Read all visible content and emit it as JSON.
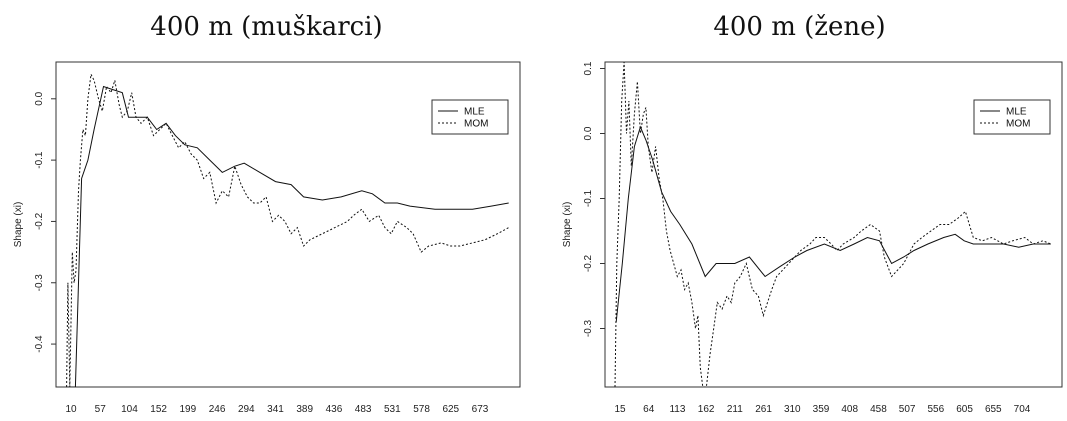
{
  "chart_data": [
    {
      "type": "line",
      "title": "400 m (muškarci)",
      "xlabel": "",
      "ylabel": "Shape (xi)",
      "x_tick_labels": [
        "10",
        "57",
        "104",
        "152",
        "199",
        "246",
        "294",
        "341",
        "389",
        "436",
        "483",
        "531",
        "578",
        "625",
        "673"
      ],
      "y_ticks": [
        0.0,
        -0.1,
        -0.2,
        -0.3,
        -0.4
      ],
      "y_tick_labels": [
        "0.0",
        "-0.1",
        "-0.2",
        "-0.3",
        "-0.4"
      ],
      "xlim": [
        10,
        720
      ],
      "ylim": [
        -0.47,
        0.06
      ],
      "legend": {
        "position": "top-right",
        "entries": [
          "MLE",
          "MOM"
        ]
      },
      "series": [
        {
          "name": "MLE",
          "style": "solid",
          "points": [
            [
              12,
              -0.47
            ],
            [
              25,
              -0.47
            ],
            [
              35,
              -0.13
            ],
            [
              45,
              -0.1
            ],
            [
              55,
              -0.05
            ],
            [
              70,
              0.02
            ],
            [
              85,
              0.015
            ],
            [
              100,
              0.01
            ],
            [
              110,
              -0.03
            ],
            [
              125,
              -0.03
            ],
            [
              140,
              -0.03
            ],
            [
              155,
              -0.05
            ],
            [
              170,
              -0.04
            ],
            [
              185,
              -0.06
            ],
            [
              200,
              -0.075
            ],
            [
              220,
              -0.08
            ],
            [
              240,
              -0.1
            ],
            [
              260,
              -0.12
            ],
            [
              280,
              -0.11
            ],
            [
              295,
              -0.105
            ],
            [
              320,
              -0.12
            ],
            [
              345,
              -0.135
            ],
            [
              370,
              -0.14
            ],
            [
              390,
              -0.16
            ],
            [
              420,
              -0.165
            ],
            [
              450,
              -0.16
            ],
            [
              483,
              -0.15
            ],
            [
              500,
              -0.155
            ],
            [
              520,
              -0.17
            ],
            [
              540,
              -0.17
            ],
            [
              560,
              -0.175
            ],
            [
              600,
              -0.18
            ],
            [
              640,
              -0.18
            ],
            [
              660,
              -0.18
            ],
            [
              690,
              -0.175
            ],
            [
              718,
              -0.17
            ]
          ]
        },
        {
          "name": "MOM",
          "style": "dashed",
          "points": [
            [
              11,
              -0.47
            ],
            [
              13,
              -0.3
            ],
            [
              16,
              -0.47
            ],
            [
              20,
              -0.25
            ],
            [
              23,
              -0.3
            ],
            [
              26,
              -0.28
            ],
            [
              30,
              -0.15
            ],
            [
              33,
              -0.1
            ],
            [
              37,
              -0.05
            ],
            [
              41,
              -0.06
            ],
            [
              45,
              0.0
            ],
            [
              50,
              0.04
            ],
            [
              55,
              0.03
            ],
            [
              62,
              0.0
            ],
            [
              68,
              -0.02
            ],
            [
              75,
              0.02
            ],
            [
              82,
              0.01
            ],
            [
              88,
              0.03
            ],
            [
              95,
              -0.01
            ],
            [
              100,
              -0.03
            ],
            [
              108,
              -0.02
            ],
            [
              115,
              0.01
            ],
            [
              122,
              -0.03
            ],
            [
              130,
              -0.04
            ],
            [
              140,
              -0.03
            ],
            [
              150,
              -0.06
            ],
            [
              160,
              -0.05
            ],
            [
              170,
              -0.04
            ],
            [
              180,
              -0.06
            ],
            [
              190,
              -0.08
            ],
            [
              200,
              -0.07
            ],
            [
              210,
              -0.09
            ],
            [
              220,
              -0.1
            ],
            [
              230,
              -0.13
            ],
            [
              240,
              -0.12
            ],
            [
              250,
              -0.17
            ],
            [
              260,
              -0.15
            ],
            [
              270,
              -0.16
            ],
            [
              280,
              -0.11
            ],
            [
              290,
              -0.14
            ],
            [
              300,
              -0.16
            ],
            [
              310,
              -0.17
            ],
            [
              320,
              -0.17
            ],
            [
              330,
              -0.16
            ],
            [
              340,
              -0.2
            ],
            [
              350,
              -0.19
            ],
            [
              360,
              -0.2
            ],
            [
              370,
              -0.22
            ],
            [
              380,
              -0.21
            ],
            [
              390,
              -0.24
            ],
            [
              400,
              -0.23
            ],
            [
              420,
              -0.22
            ],
            [
              440,
              -0.21
            ],
            [
              460,
              -0.2
            ],
            [
              470,
              -0.19
            ],
            [
              483,
              -0.18
            ],
            [
              495,
              -0.2
            ],
            [
              510,
              -0.19
            ],
            [
              520,
              -0.21
            ],
            [
              530,
              -0.22
            ],
            [
              540,
              -0.2
            ],
            [
              555,
              -0.21
            ],
            [
              565,
              -0.22
            ],
            [
              578,
              -0.25
            ],
            [
              590,
              -0.24
            ],
            [
              610,
              -0.235
            ],
            [
              625,
              -0.24
            ],
            [
              640,
              -0.24
            ],
            [
              660,
              -0.235
            ],
            [
              680,
              -0.23
            ],
            [
              700,
              -0.22
            ],
            [
              718,
              -0.21
            ]
          ]
        }
      ]
    },
    {
      "type": "line",
      "title": "400 m (žene)",
      "xlabel": "",
      "ylabel": "Shape (xi)",
      "x_tick_labels": [
        "15",
        "64",
        "113",
        "162",
        "211",
        "261",
        "310",
        "359",
        "408",
        "458",
        "507",
        "556",
        "605",
        "655",
        "704"
      ],
      "y_ticks": [
        0.1,
        0.0,
        -0.1,
        -0.2,
        -0.3
      ],
      "y_tick_labels": [
        "0.1",
        "0.0",
        "-0.1",
        "-0.2",
        "-0.3"
      ],
      "xlim": [
        13,
        735
      ],
      "ylim": [
        -0.39,
        0.11
      ],
      "legend": {
        "position": "top-right",
        "entries": [
          "MLE",
          "MOM"
        ]
      },
      "series": [
        {
          "name": "MLE",
          "style": "solid",
          "points": [
            [
              15,
              -0.29
            ],
            [
              25,
              -0.2
            ],
            [
              35,
              -0.1
            ],
            [
              45,
              -0.02
            ],
            [
              55,
              0.01
            ],
            [
              64,
              -0.01
            ],
            [
              75,
              -0.04
            ],
            [
              90,
              -0.09
            ],
            [
              105,
              -0.12
            ],
            [
              120,
              -0.14
            ],
            [
              140,
              -0.17
            ],
            [
              162,
              -0.22
            ],
            [
              180,
              -0.2
            ],
            [
              200,
              -0.2
            ],
            [
              211,
              -0.2
            ],
            [
              235,
              -0.19
            ],
            [
              261,
              -0.22
            ],
            [
              285,
              -0.205
            ],
            [
              310,
              -0.19
            ],
            [
              330,
              -0.18
            ],
            [
              359,
              -0.17
            ],
            [
              385,
              -0.18
            ],
            [
              408,
              -0.17
            ],
            [
              430,
              -0.16
            ],
            [
              450,
              -0.165
            ],
            [
              470,
              -0.2
            ],
            [
              490,
              -0.19
            ],
            [
              507,
              -0.18
            ],
            [
              530,
              -0.17
            ],
            [
              556,
              -0.16
            ],
            [
              575,
              -0.155
            ],
            [
              590,
              -0.165
            ],
            [
              605,
              -0.17
            ],
            [
              630,
              -0.17
            ],
            [
              655,
              -0.17
            ],
            [
              680,
              -0.175
            ],
            [
              704,
              -0.17
            ],
            [
              733,
              -0.17
            ]
          ]
        },
        {
          "name": "MOM",
          "style": "dashed",
          "points": [
            [
              13,
              -0.39
            ],
            [
              16,
              -0.2
            ],
            [
              20,
              -0.1
            ],
            [
              24,
              0.05
            ],
            [
              28,
              0.11
            ],
            [
              32,
              0.0
            ],
            [
              36,
              0.05
            ],
            [
              40,
              -0.05
            ],
            [
              45,
              0.03
            ],
            [
              50,
              0.08
            ],
            [
              55,
              0.0
            ],
            [
              60,
              0.03
            ],
            [
              64,
              0.04
            ],
            [
              68,
              -0.02
            ],
            [
              74,
              -0.06
            ],
            [
              80,
              -0.02
            ],
            [
              86,
              -0.07
            ],
            [
              92,
              -0.1
            ],
            [
              98,
              -0.15
            ],
            [
              104,
              -0.18
            ],
            [
              110,
              -0.2
            ],
            [
              116,
              -0.22
            ],
            [
              122,
              -0.21
            ],
            [
              128,
              -0.24
            ],
            [
              134,
              -0.23
            ],
            [
              140,
              -0.26
            ],
            [
              146,
              -0.3
            ],
            [
              150,
              -0.28
            ],
            [
              154,
              -0.36
            ],
            [
              158,
              -0.39
            ],
            [
              164,
              -0.39
            ],
            [
              170,
              -0.34
            ],
            [
              176,
              -0.3
            ],
            [
              182,
              -0.26
            ],
            [
              190,
              -0.27
            ],
            [
              198,
              -0.25
            ],
            [
              205,
              -0.26
            ],
            [
              211,
              -0.23
            ],
            [
              220,
              -0.22
            ],
            [
              230,
              -0.2
            ],
            [
              240,
              -0.24
            ],
            [
              250,
              -0.25
            ],
            [
              258,
              -0.28
            ],
            [
              265,
              -0.26
            ],
            [
              272,
              -0.24
            ],
            [
              280,
              -0.22
            ],
            [
              290,
              -0.21
            ],
            [
              300,
              -0.2
            ],
            [
              310,
              -0.19
            ],
            [
              320,
              -0.18
            ],
            [
              335,
              -0.17
            ],
            [
              345,
              -0.16
            ],
            [
              359,
              -0.16
            ],
            [
              370,
              -0.17
            ],
            [
              380,
              -0.18
            ],
            [
              390,
              -0.17
            ],
            [
              408,
              -0.16
            ],
            [
              420,
              -0.15
            ],
            [
              435,
              -0.14
            ],
            [
              450,
              -0.15
            ],
            [
              458,
              -0.19
            ],
            [
              470,
              -0.22
            ],
            [
              480,
              -0.21
            ],
            [
              490,
              -0.2
            ],
            [
              507,
              -0.17
            ],
            [
              520,
              -0.16
            ],
            [
              535,
              -0.15
            ],
            [
              550,
              -0.14
            ],
            [
              565,
              -0.14
            ],
            [
              580,
              -0.13
            ],
            [
              592,
              -0.12
            ],
            [
              605,
              -0.16
            ],
            [
              620,
              -0.165
            ],
            [
              635,
              -0.16
            ],
            [
              655,
              -0.17
            ],
            [
              670,
              -0.165
            ],
            [
              690,
              -0.16
            ],
            [
              704,
              -0.17
            ],
            [
              720,
              -0.165
            ],
            [
              733,
              -0.17
            ]
          ]
        }
      ]
    }
  ]
}
